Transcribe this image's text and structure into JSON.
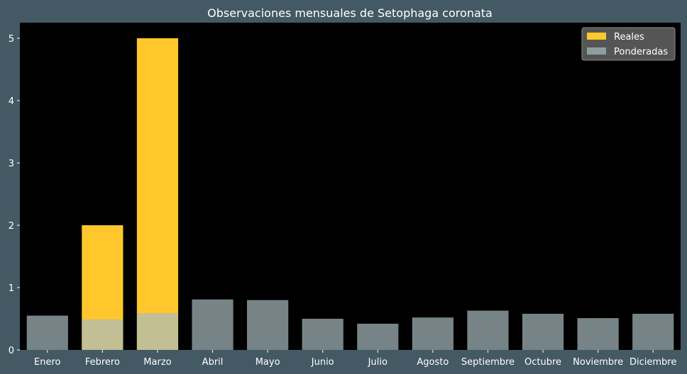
{
  "chart_data": {
    "type": "bar",
    "title": "Observaciones mensuales de Setophaga coronata",
    "xlabel": "",
    "ylabel": "",
    "categories": [
      "Enero",
      "Febrero",
      "Marzo",
      "Abril",
      "Mayo",
      "Junio",
      "Julio",
      "Agosto",
      "Septiembre",
      "Octubre",
      "Noviembre",
      "Diciembre"
    ],
    "series": [
      {
        "name": "Reales",
        "color": "#ffc72c",
        "values": [
          0,
          2,
          5,
          0,
          0,
          0,
          0,
          0,
          0,
          0,
          0,
          0
        ]
      },
      {
        "name": "Ponderadas",
        "color": "#a9bcc0",
        "opacity": 0.7,
        "values": [
          0.55,
          0.49,
          0.59,
          0.81,
          0.8,
          0.5,
          0.42,
          0.52,
          0.63,
          0.58,
          0.51,
          0.58
        ]
      }
    ],
    "yticks": [
      0,
      1,
      2,
      3,
      4,
      5
    ],
    "ylim": [
      0,
      5.25
    ],
    "grid": false,
    "legend": "top-right",
    "colors": {
      "figure_background": "#435964",
      "plot_background": "#000000",
      "text": "#ffffff"
    }
  }
}
